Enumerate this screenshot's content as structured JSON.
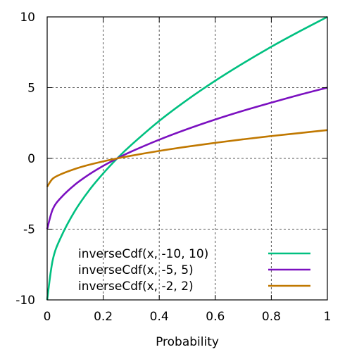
{
  "chart_data": {
    "type": "line",
    "title": "",
    "xlabel": "Probability",
    "ylabel": "",
    "xlim": [
      0,
      1
    ],
    "ylim": [
      -10,
      10
    ],
    "grid": true,
    "legend_position": "bottom-right",
    "x_ticks": [
      0,
      0.2,
      0.4,
      0.6,
      0.8,
      1
    ],
    "x_tick_labels": [
      "0",
      "0.2",
      "0.4",
      "0.6",
      "0.8",
      "1"
    ],
    "y_ticks": [
      -10,
      -5,
      0,
      5,
      10
    ],
    "y_tick_labels": [
      "-10",
      "-5",
      "0",
      "5",
      "10"
    ],
    "x": [
      0,
      0.02,
      0.05,
      0.1,
      0.15,
      0.2,
      0.25,
      0.3,
      0.4,
      0.5,
      0.6,
      0.7,
      0.8,
      0.9,
      1.0
    ],
    "series": [
      {
        "name": "inverseCdf(x, -10, 10)",
        "color": "#00c080",
        "values": [
          -10,
          -7.17,
          -5.53,
          -3.68,
          -2.25,
          -1.06,
          0.0,
          0.95,
          2.65,
          4.14,
          5.49,
          6.73,
          7.89,
          8.97,
          10
        ]
      },
      {
        "name": "inverseCdf(x, -5, 5)",
        "color": "#7b10c0",
        "values": [
          -5,
          -3.59,
          -2.76,
          -1.84,
          -1.13,
          -0.53,
          0.0,
          0.48,
          1.32,
          2.07,
          2.75,
          3.37,
          3.94,
          4.49,
          5
        ]
      },
      {
        "name": "inverseCdf(x, -2, 2)",
        "color": "#c07800",
        "values": [
          -2,
          -1.43,
          -1.11,
          -0.74,
          -0.45,
          -0.21,
          0.0,
          0.19,
          0.53,
          0.83,
          1.1,
          1.35,
          1.58,
          1.79,
          2
        ]
      }
    ]
  }
}
